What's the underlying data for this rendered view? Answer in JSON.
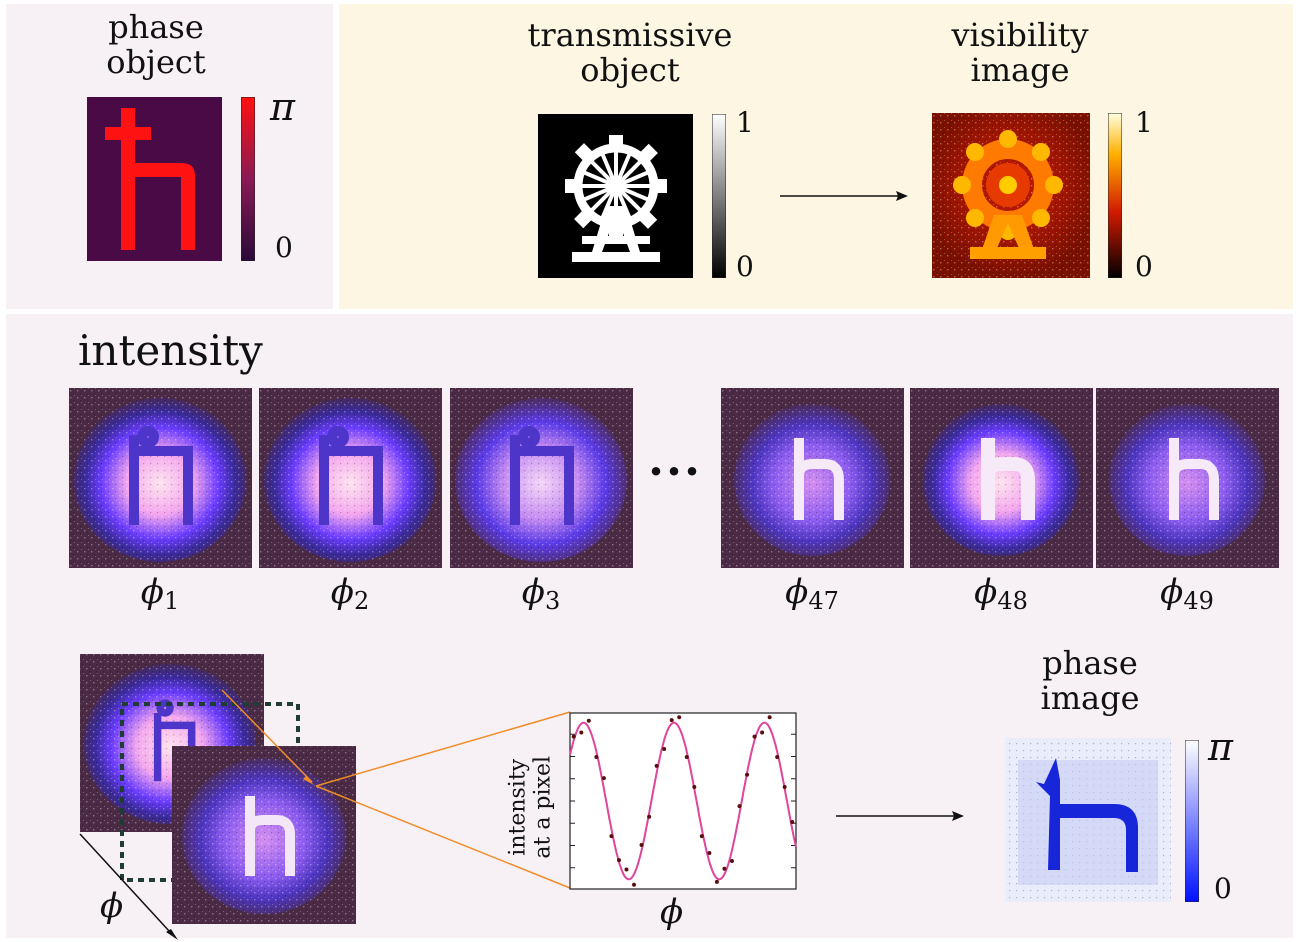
{
  "phase_object": {
    "title_line1": "phase",
    "title_line2": "object",
    "cb_max": "π",
    "cb_min": "0"
  },
  "transmissive_object": {
    "title_line1": "transmissive",
    "title_line2": "object",
    "cb_max": "1",
    "cb_min": "0"
  },
  "visibility_image": {
    "title_line1": "visibility",
    "title_line2": "image",
    "cb_max": "1",
    "cb_min": "0"
  },
  "intensity": {
    "title": "intensity",
    "ellipsis": "···",
    "frames": [
      {
        "label": "ϕ",
        "sub": "1"
      },
      {
        "label": "ϕ",
        "sub": "2"
      },
      {
        "label": "ϕ",
        "sub": "3"
      },
      {
        "label": "ϕ",
        "sub": "47"
      },
      {
        "label": "ϕ",
        "sub": "48"
      },
      {
        "label": "ϕ",
        "sub": "49"
      }
    ]
  },
  "stack": {
    "axis_label": "ϕ"
  },
  "fit_plot": {
    "ylabel_line1": "intensity",
    "ylabel_line2": "at a pixel",
    "xlabel": "ϕ"
  },
  "phase_image": {
    "title_line1": "phase",
    "title_line2": "image",
    "cb_max": "π",
    "cb_min": "0"
  },
  "colors": {
    "panel_pink": "#f7f1f6",
    "panel_cream": "#fdf6e3",
    "fit_curve": "#e0459c",
    "data_points": "#5a0f0f",
    "zoom_lines": "#f08c28",
    "dashed_box": "#1f3d33"
  }
}
